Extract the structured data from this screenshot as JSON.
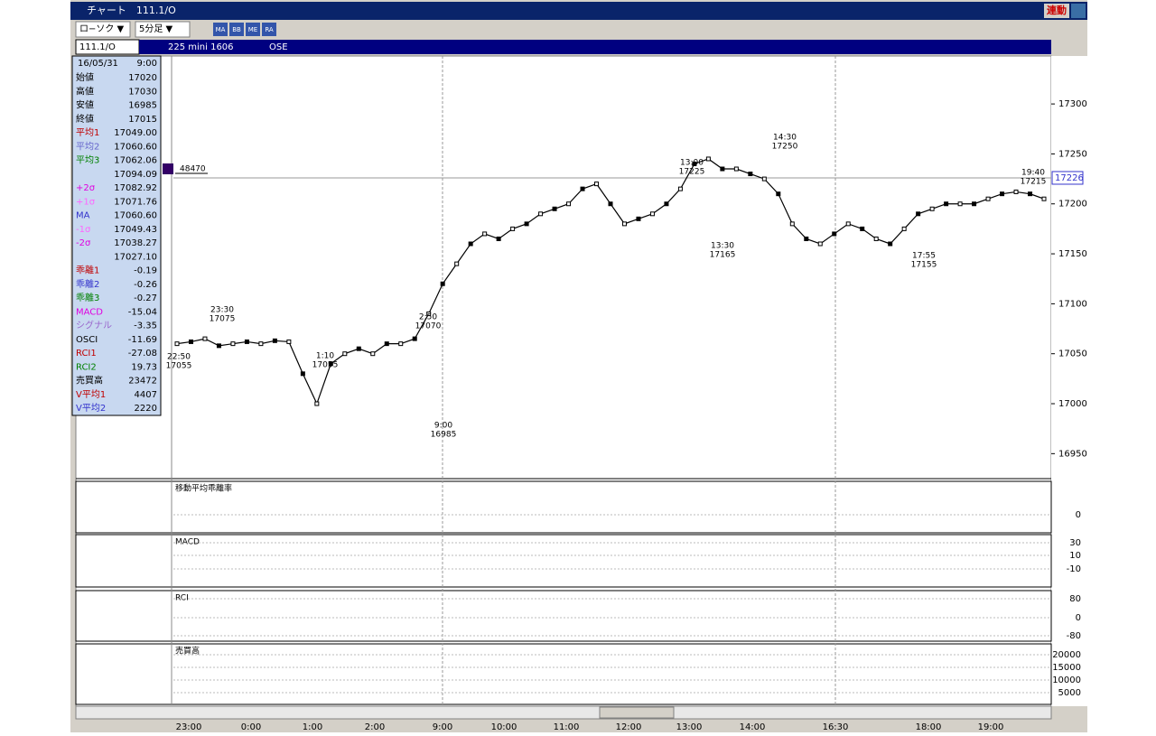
{
  "window": {
    "title": "チャート　111.1/O",
    "link_button": "連動"
  },
  "toolbar": {
    "chart_kind": "ロ−ソク ▼",
    "interval": "5分足 ▼",
    "icons": [
      "MA",
      "BB",
      "ME",
      "RA"
    ]
  },
  "header": {
    "symbol": "111.1/O",
    "name": "225 mini 1606",
    "exchange": "OSE"
  },
  "info_panel": {
    "date": "16/05/31",
    "time": "9:00",
    "rows": [
      [
        "始値",
        "17020",
        "#000"
      ],
      [
        "高値",
        "17030",
        "#000"
      ],
      [
        "安値",
        "16985",
        "#000"
      ],
      [
        "終値",
        "17015",
        "#000"
      ],
      [
        "平均1",
        "17049.00",
        "#c00000"
      ],
      [
        "平均2",
        "17060.60",
        "#6666cc"
      ],
      [
        "平均3",
        "17062.06",
        "#008000"
      ],
      [
        null,
        "17094.09",
        "#000"
      ],
      [
        "+2σ",
        "17082.92",
        "#e000e0"
      ],
      [
        "+1σ",
        "17071.76",
        "#ff66ff"
      ],
      [
        "MA",
        "17060.60",
        "#3333cc"
      ],
      [
        "-1σ",
        "17049.43",
        "#ff66ff"
      ],
      [
        "-2σ",
        "17038.27",
        "#e000e0"
      ],
      [
        null,
        "17027.10",
        "#000"
      ],
      [
        "乖離1",
        "-0.19",
        "#c00000"
      ],
      [
        "乖離2",
        "-0.26",
        "#3333cc"
      ],
      [
        "乖離3",
        "-0.27",
        "#008000"
      ],
      [
        "MACD",
        "-15.04",
        "#e000e0"
      ],
      [
        "シグナル",
        "-3.35",
        "#9966cc"
      ],
      [
        "OSCI",
        "-11.69",
        "#000"
      ],
      [
        "RCI1",
        "-27.08",
        "#c00000"
      ],
      [
        "RCI2",
        "19.73",
        "#008000"
      ],
      [
        "売買高",
        "23472",
        "#000"
      ],
      [
        "V平均1",
        "4407",
        "#c00000"
      ],
      [
        "V平均2",
        "2220",
        "#3333cc"
      ]
    ]
  },
  "chart_data": {
    "type": "line",
    "color": "#000000",
    "values": [
      17060,
      17062,
      17065,
      17058,
      17060,
      17062,
      17060,
      17063,
      17062,
      17030,
      17000,
      17040,
      17050,
      17055,
      17050,
      17060,
      17060,
      17065,
      17090,
      17120,
      17140,
      17160,
      17170,
      17165,
      17175,
      17180,
      17190,
      17195,
      17200,
      17215,
      17220,
      17200,
      17180,
      17185,
      17190,
      17200,
      17215,
      17240,
      17245,
      17235,
      17235,
      17230,
      17225,
      17210,
      17180,
      17165,
      17160,
      17170,
      17180,
      17175,
      17165,
      17160,
      17175,
      17190,
      17195,
      17200,
      17200,
      17200,
      17205,
      17210,
      17212,
      17210,
      17205
    ],
    "ylim": [
      16925,
      17348
    ],
    "yticks": [
      16950,
      17000,
      17050,
      17100,
      17150,
      17200,
      17250,
      17300
    ],
    "current_price": 17226,
    "volume_marker": 48470,
    "x_labels": [
      "23:00",
      "0:00",
      "1:00",
      "2:00",
      "9:00",
      "10:00",
      "11:00",
      "12:00",
      "13:00",
      "14:00",
      "16:30",
      "18:00",
      "19:00"
    ],
    "annotations": [
      [
        "23:30",
        17075
      ],
      [
        "22:50",
        17055
      ],
      [
        "1:10",
        17055
      ],
      [
        "2:50",
        17070
      ],
      [
        "9:00",
        16985
      ],
      [
        "13:00",
        17225
      ],
      [
        "13:30",
        17165
      ],
      [
        "14:30",
        17250
      ],
      [
        "17:55",
        17155
      ],
      [
        "19:40",
        17215
      ]
    ],
    "panels": [
      {
        "title": "移動平均乖離率",
        "ticks": [
          0
        ]
      },
      {
        "title": "MACD",
        "ticks": [
          30,
          10,
          -10
        ]
      },
      {
        "title": "RCI",
        "ticks": [
          80,
          0,
          -80
        ]
      },
      {
        "title": "売買高",
        "ticks": [
          {
            "value": 20000,
            "label": "20000"
          },
          {
            "value": 15000,
            "label": "15000"
          },
          {
            "value": 10000,
            "label": "10000"
          },
          {
            "value": 5000,
            "label": "5000"
          }
        ]
      }
    ]
  }
}
